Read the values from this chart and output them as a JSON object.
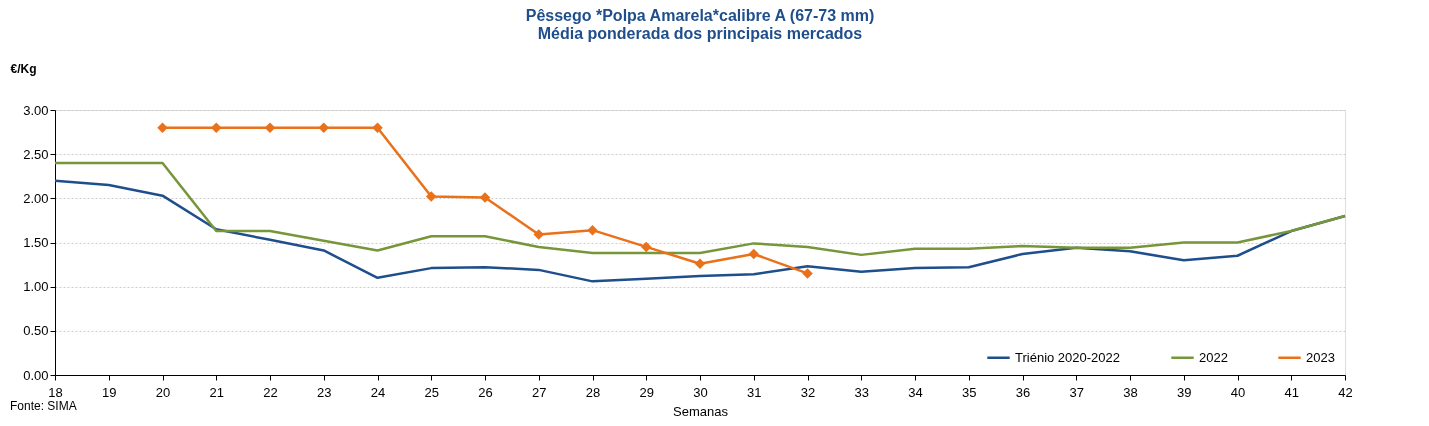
{
  "chart_data": {
    "type": "line",
    "title": "Pêssego *Polpa Amarela*calibre A (67-73 mm)",
    "subtitle": "Média ponderada dos principais mercados",
    "xlabel": "Semanas",
    "ylabel": "€/Kg",
    "x": [
      18,
      19,
      20,
      21,
      22,
      23,
      24,
      25,
      26,
      27,
      28,
      29,
      30,
      31,
      32,
      33,
      34,
      35,
      36,
      37,
      38,
      39,
      40,
      41,
      42
    ],
    "series": [
      {
        "name": "Triénio 2020-2022",
        "color": "#1f4e8c",
        "marker": "none",
        "values": [
          2.2,
          2.15,
          2.03,
          1.65,
          1.53,
          1.41,
          1.1,
          1.21,
          1.22,
          1.19,
          1.06,
          1.09,
          1.12,
          1.14,
          1.23,
          1.17,
          1.21,
          1.22,
          1.37,
          1.44,
          1.4,
          1.3,
          1.35,
          1.63,
          1.8
        ]
      },
      {
        "name": "2022",
        "color": "#77963a",
        "marker": "none",
        "values": [
          2.4,
          2.4,
          2.4,
          1.63,
          1.63,
          1.52,
          1.41,
          1.57,
          1.57,
          1.45,
          1.38,
          1.38,
          1.38,
          1.49,
          1.45,
          1.36,
          1.43,
          1.43,
          1.46,
          1.44,
          1.44,
          1.5,
          1.5,
          1.63,
          1.8
        ]
      },
      {
        "name": "2023",
        "color": "#e8711a",
        "marker": "diamond",
        "values": [
          null,
          null,
          2.8,
          2.8,
          2.8,
          2.8,
          2.8,
          2.02,
          2.01,
          1.59,
          1.64,
          1.45,
          1.26,
          1.37,
          1.15,
          null,
          null,
          null,
          null,
          null,
          null,
          null,
          null,
          null,
          null
        ]
      }
    ],
    "xlim": [
      18,
      42
    ],
    "xticks": [
      18,
      19,
      20,
      21,
      22,
      23,
      24,
      25,
      26,
      27,
      28,
      29,
      30,
      31,
      32,
      33,
      34,
      35,
      36,
      37,
      38,
      39,
      40,
      41,
      42
    ],
    "ylim": [
      0,
      3
    ],
    "yticks": [
      {
        "value": 0,
        "label": "0.00"
      },
      {
        "value": 0.5,
        "label": "0.50"
      },
      {
        "value": 1,
        "label": "1.00"
      },
      {
        "value": 1.5,
        "label": "1.50"
      },
      {
        "value": 2,
        "label": "2.00"
      },
      {
        "value": 2.5,
        "label": "2.50"
      },
      {
        "value": 3,
        "label": "3.00"
      }
    ],
    "grid": "y",
    "legend": "bottom right",
    "line_style": "solid",
    "annotations": [
      "Fonte: SIMA"
    ]
  }
}
